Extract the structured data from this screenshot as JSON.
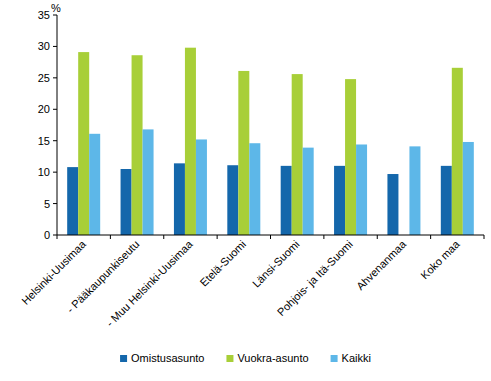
{
  "chart_data": {
    "type": "bar",
    "y_label": "%",
    "categories": [
      "Helsinki-Uusimaa",
      "- Pääkaupunkiseutu",
      "- Muu Helsinki-Uusimaa",
      "Etelä-Suomi",
      "Länsi-Suomi",
      "Pohjois- ja Itä-Suomi",
      "Ahvenanmaa",
      "Koko maa"
    ],
    "series": [
      {
        "name": "Omistusasunto",
        "color": "#1467ab",
        "values": [
          10.8,
          10.5,
          11.4,
          11.1,
          11.0,
          11.0,
          9.7,
          11.0
        ]
      },
      {
        "name": "Vuokra-asunto",
        "color": "#a8cf38",
        "values": [
          29.1,
          28.6,
          29.8,
          26.1,
          25.6,
          24.8,
          null,
          26.6
        ]
      },
      {
        "name": "Kaikki",
        "color": "#5db7e8",
        "values": [
          16.1,
          16.8,
          15.2,
          14.6,
          13.9,
          14.4,
          14.1,
          14.8
        ]
      }
    ],
    "ylim": [
      0,
      35
    ],
    "yticks": [
      0,
      5,
      10,
      15,
      20,
      25,
      30,
      35
    ],
    "grid": false,
    "legend": "bottom"
  }
}
